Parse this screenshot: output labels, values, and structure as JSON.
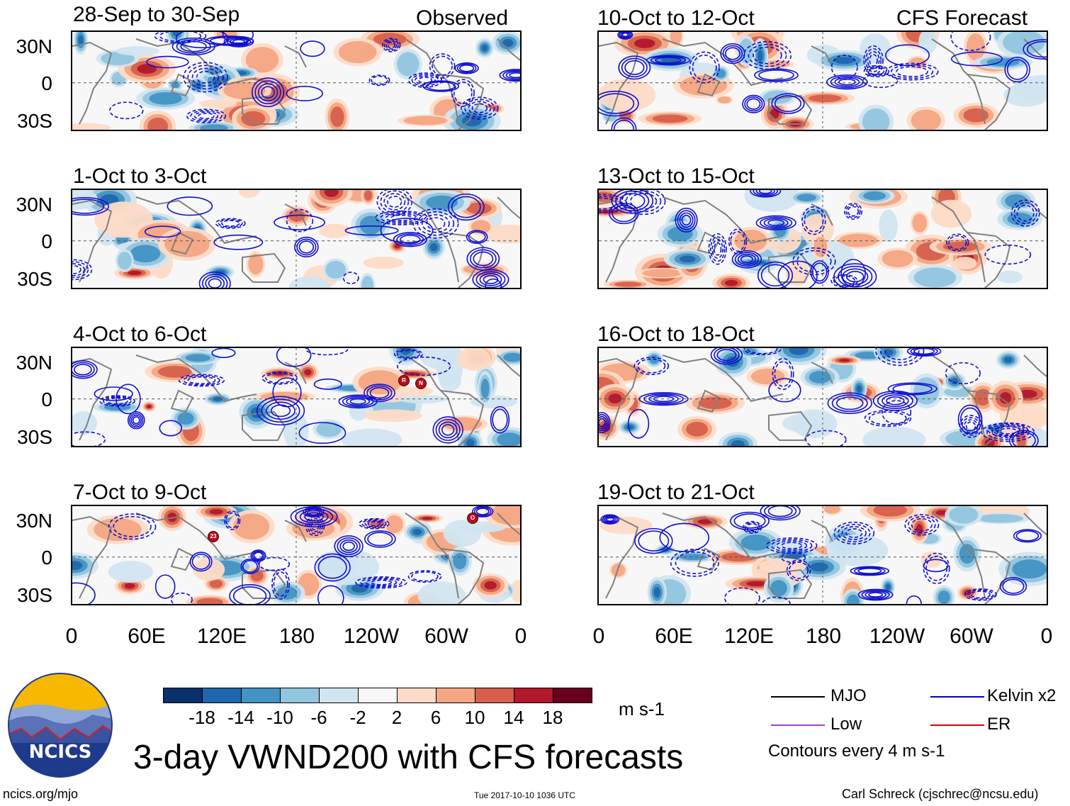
{
  "panels_left": [
    {
      "title": "28-Sep to 30-Sep",
      "corner": "Observed"
    },
    {
      "title": "1-Oct to 3-Oct",
      "corner": ""
    },
    {
      "title": "4-Oct to 6-Oct",
      "corner": ""
    },
    {
      "title": "7-Oct to 9-Oct",
      "corner": ""
    }
  ],
  "panels_right": [
    {
      "title": "10-Oct to 12-Oct",
      "corner": "CFS Forecast"
    },
    {
      "title": "13-Oct to 15-Oct",
      "corner": ""
    },
    {
      "title": "16-Oct to 18-Oct",
      "corner": ""
    },
    {
      "title": "19-Oct to 21-Oct",
      "corner": ""
    }
  ],
  "lat_labels": [
    "30N",
    "0",
    "30S"
  ],
  "lon_labels": [
    "0",
    "60E",
    "120E",
    "180",
    "120W",
    "60W",
    "0"
  ],
  "storm_markers": {
    "panel3_a": "R",
    "panel3_b": "N",
    "panel4_a": "23",
    "panel4_b": "O"
  },
  "colorbar": {
    "labels": [
      "-18",
      "-14",
      "-10",
      "-6",
      "-2",
      "2",
      "6",
      "10",
      "14",
      "18"
    ],
    "colors": [
      "#08306b",
      "#2166ac",
      "#4393c3",
      "#92c5de",
      "#d1e5f0",
      "#f7f7f7",
      "#fddbc7",
      "#f4a582",
      "#d6604d",
      "#b2182b",
      "#67001f"
    ],
    "units": "m s-1"
  },
  "legend": {
    "mjo": "MJO",
    "kelvin": "Kelvin x2",
    "low": "Low",
    "er": "ER",
    "contours": "Contours every 4 m s-1",
    "colors": {
      "mjo": "#000000",
      "kelvin": "#0000cc",
      "low": "#a040d0",
      "er": "#dd0000"
    }
  },
  "logo": {
    "text": "NCICS"
  },
  "main_title": "3-day VWND200 with CFS forecasts",
  "footer": {
    "left": "ncics.org/mjo",
    "center": "Tue 2017-10-10 1036 UTC",
    "right": "Carl Schreck (cjschrec@ncsu.edu)"
  }
}
